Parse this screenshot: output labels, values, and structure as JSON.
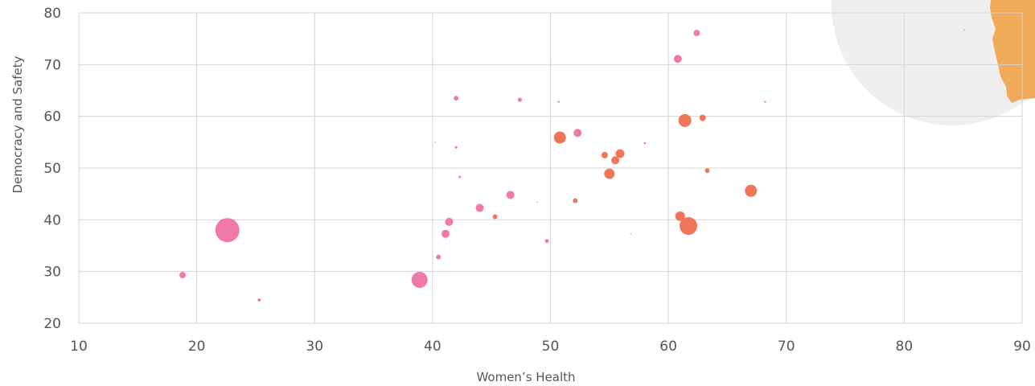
{
  "chart_data": {
    "type": "scatter",
    "title": "",
    "xlabel": "Women’s Health",
    "ylabel": "Democracy and Safety",
    "xlim": [
      10,
      90
    ],
    "ylim": [
      20,
      80
    ],
    "xticks": [
      10,
      20,
      30,
      40,
      50,
      60,
      70,
      80,
      90
    ],
    "yticks": [
      20,
      30,
      40,
      50,
      60,
      70,
      80
    ],
    "grid": true,
    "legend": "none",
    "colors": {
      "pink": "#ef7aa8",
      "orange": "#f0765a",
      "inset_circle": "#efefef",
      "inset_land": "#f0aa5a"
    },
    "points": [
      {
        "x": 18.8,
        "y": 29.3,
        "size": 4,
        "color": "pink"
      },
      {
        "x": 22.6,
        "y": 38.0,
        "size": 15,
        "color": "pink"
      },
      {
        "x": 25.3,
        "y": 24.5,
        "size": 2,
        "color": "pink"
      },
      {
        "x": 38.9,
        "y": 28.4,
        "size": 10,
        "color": "pink"
      },
      {
        "x": 40.5,
        "y": 32.8,
        "size": 3,
        "color": "pink"
      },
      {
        "x": 41.1,
        "y": 37.3,
        "size": 5,
        "color": "pink"
      },
      {
        "x": 41.4,
        "y": 39.6,
        "size": 5,
        "color": "pink"
      },
      {
        "x": 42.0,
        "y": 63.5,
        "size": 3,
        "color": "pink"
      },
      {
        "x": 42.0,
        "y": 54.0,
        "size": 1.5,
        "color": "pink"
      },
      {
        "x": 42.3,
        "y": 48.3,
        "size": 1.5,
        "color": "pink"
      },
      {
        "x": 40.2,
        "y": 55.0,
        "size": 0.7,
        "color": "pink"
      },
      {
        "x": 44.0,
        "y": 42.3,
        "size": 5,
        "color": "pink"
      },
      {
        "x": 46.6,
        "y": 44.8,
        "size": 5,
        "color": "pink"
      },
      {
        "x": 47.4,
        "y": 63.2,
        "size": 2.5,
        "color": "pink"
      },
      {
        "x": 48.9,
        "y": 43.4,
        "size": 0.7,
        "color": "pink"
      },
      {
        "x": 49.7,
        "y": 35.9,
        "size": 2.5,
        "color": "pink"
      },
      {
        "x": 50.7,
        "y": 62.8,
        "size": 1.2,
        "color": "pink"
      },
      {
        "x": 52.3,
        "y": 56.8,
        "size": 5,
        "color": "pink"
      },
      {
        "x": 60.8,
        "y": 71.1,
        "size": 5,
        "color": "pink"
      },
      {
        "x": 62.4,
        "y": 76.1,
        "size": 4,
        "color": "pink"
      },
      {
        "x": 68.2,
        "y": 62.8,
        "size": 1.2,
        "color": "pink"
      },
      {
        "x": 45.3,
        "y": 40.6,
        "size": 3,
        "color": "orange"
      },
      {
        "x": 50.8,
        "y": 55.9,
        "size": 7.5,
        "color": "orange"
      },
      {
        "x": 52.1,
        "y": 43.7,
        "size": 3,
        "color": "orange"
      },
      {
        "x": 54.6,
        "y": 52.5,
        "size": 4,
        "color": "orange"
      },
      {
        "x": 55.0,
        "y": 48.9,
        "size": 6.5,
        "color": "orange"
      },
      {
        "x": 55.5,
        "y": 51.5,
        "size": 5,
        "color": "orange"
      },
      {
        "x": 55.9,
        "y": 52.8,
        "size": 5.5,
        "color": "orange"
      },
      {
        "x": 56.8,
        "y": 37.3,
        "size": 0.7,
        "color": "orange"
      },
      {
        "x": 58.0,
        "y": 54.8,
        "size": 1.2,
        "color": "orange"
      },
      {
        "x": 61.0,
        "y": 40.7,
        "size": 6,
        "color": "orange"
      },
      {
        "x": 61.4,
        "y": 59.2,
        "size": 8,
        "color": "orange"
      },
      {
        "x": 61.7,
        "y": 38.8,
        "size": 11,
        "color": "orange"
      },
      {
        "x": 62.9,
        "y": 59.7,
        "size": 4,
        "color": "orange"
      },
      {
        "x": 63.3,
        "y": 49.5,
        "size": 3,
        "color": "orange"
      },
      {
        "x": 67.0,
        "y": 45.6,
        "size": 7.5,
        "color": "orange"
      }
    ]
  }
}
